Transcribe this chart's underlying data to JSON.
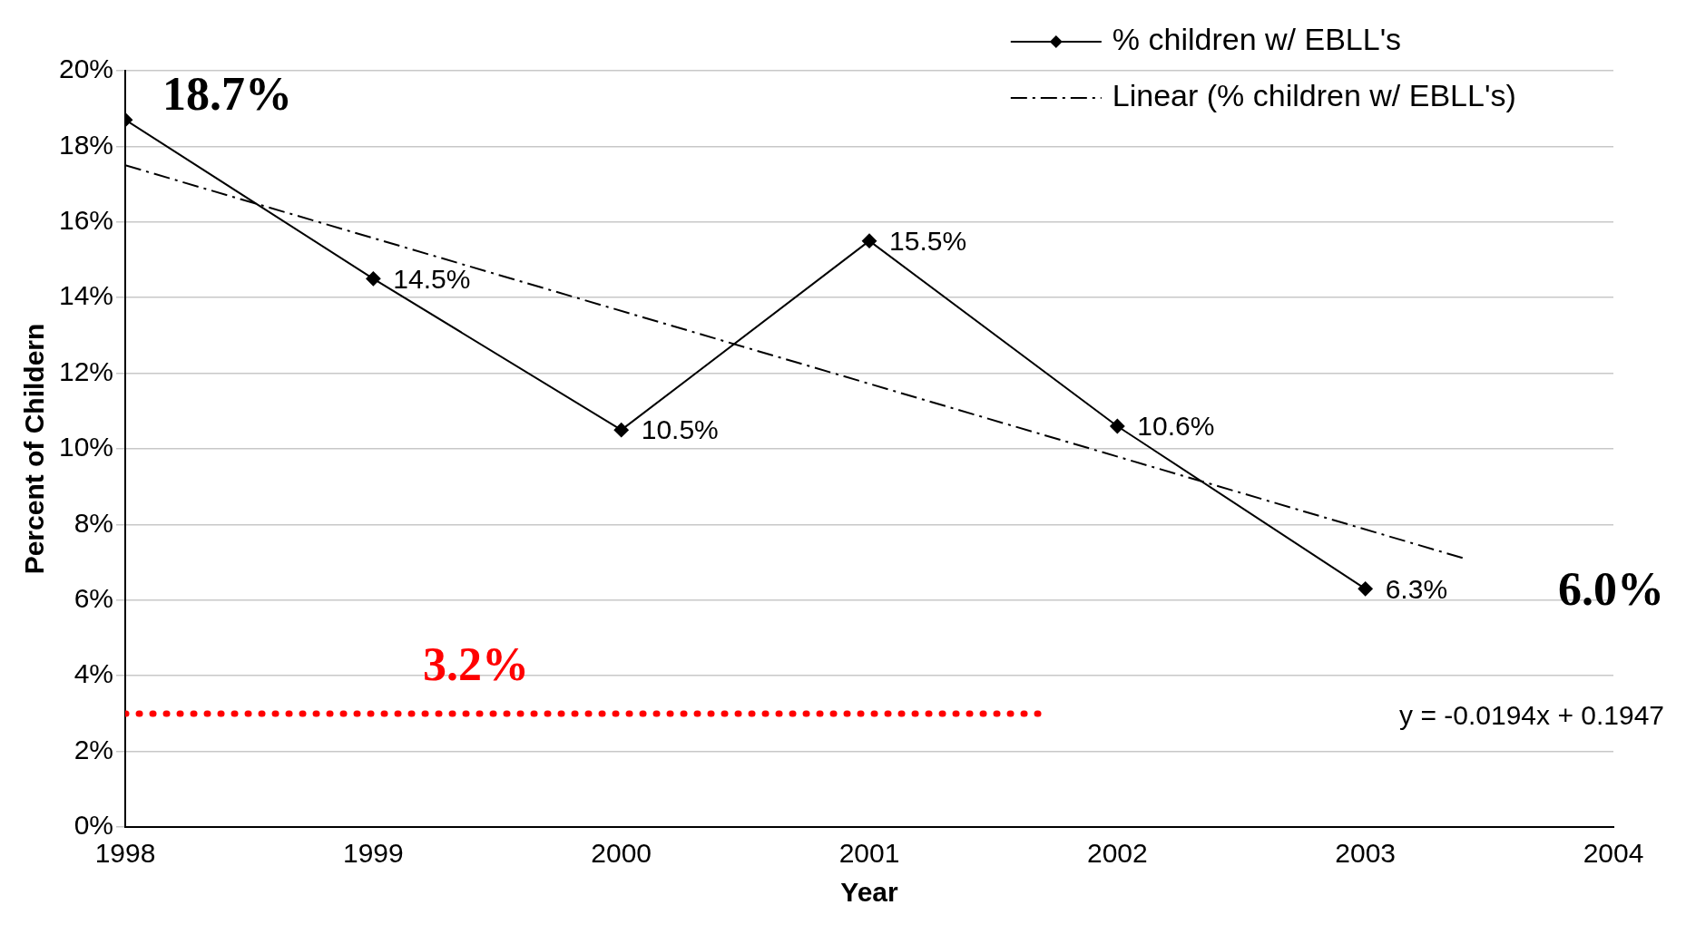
{
  "chart_data": {
    "type": "line",
    "xlabel": "Year",
    "ylabel": "Percent of Childern",
    "xlim": [
      1998,
      2004
    ],
    "xticks": [
      1998,
      1999,
      2000,
      2001,
      2002,
      2003,
      2004
    ],
    "ylim": [
      0,
      20
    ],
    "yticks": [
      {
        "value": 0,
        "label": "0%"
      },
      {
        "value": 2,
        "label": "2%"
      },
      {
        "value": 4,
        "label": "4%"
      },
      {
        "value": 6,
        "label": "6%"
      },
      {
        "value": 8,
        "label": "8%"
      },
      {
        "value": 10,
        "label": "10%"
      },
      {
        "value": 12,
        "label": "12%"
      },
      {
        "value": 14,
        "label": "14%"
      },
      {
        "value": 16,
        "label": "16%"
      },
      {
        "value": 18,
        "label": "18%"
      },
      {
        "value": 20,
        "label": "20%"
      }
    ],
    "grid": "y",
    "legend": "top right",
    "series": [
      {
        "name": "% children w/ EBLL's",
        "color": "#000000",
        "x": [
          1998,
          1999,
          2000,
          2001,
          2002,
          2003
        ],
        "values": [
          18.7,
          14.5,
          10.5,
          15.5,
          10.6,
          6.3
        ],
        "marker": "diamond",
        "line_style": "solid",
        "value_labels": [
          null,
          "14.5%",
          "10.5%",
          "15.5%",
          "10.6%",
          "6.3%"
        ]
      },
      {
        "name": "Linear (% children w/ EBLL's)",
        "type": "line",
        "color": "#000000",
        "x": [
          1998,
          2003.4
        ],
        "values": [
          17.5,
          7.1
        ],
        "marker": "none",
        "line_style": "dashed"
      },
      {
        "type": "line",
        "color": "#ff0000",
        "x": [
          1998,
          2001.7
        ],
        "values": [
          3.0,
          3.0
        ],
        "marker": "none",
        "line_style": "dotted"
      }
    ],
    "annotations": [
      "18.7%",
      "6.0%",
      "3.2%",
      "y = -0.0194x + 0.1947"
    ]
  }
}
